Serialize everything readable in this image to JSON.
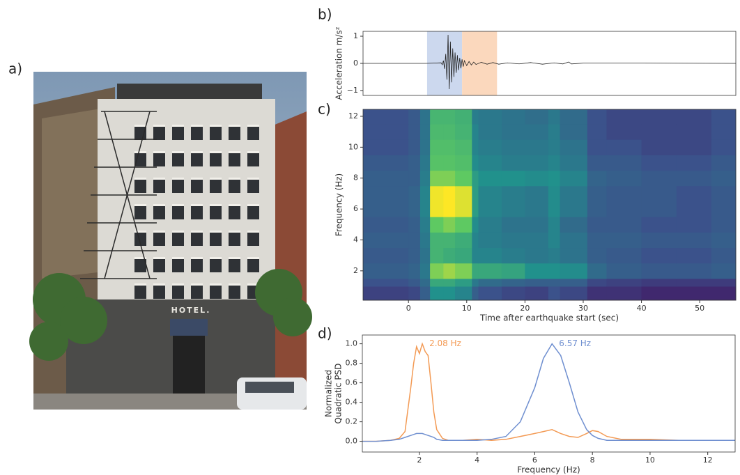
{
  "photo": {
    "label": "a)",
    "sign": "HOTEL."
  },
  "chart_data": [
    {
      "type": "line",
      "panel_label": "b)",
      "ylabel": [
        "Acceleration m/s²"
      ],
      "xlim": [
        -7.8,
        56.2
      ],
      "ylim": [
        -1.18,
        1.18
      ],
      "yticks": [
        {
          "value": -1,
          "label": "−1"
        },
        0,
        1
      ],
      "spans": [
        {
          "start": 3.2,
          "end": 9.2,
          "color": "#ccd8ee"
        },
        {
          "start": 9.2,
          "end": 15.2,
          "color": "#fbd8bd"
        }
      ],
      "x": [
        -7.8,
        3.0,
        5.6,
        5.8,
        6.0,
        6.2,
        6.4,
        6.6,
        6.8,
        7.0,
        7.2,
        7.4,
        7.6,
        7.8,
        8.0,
        8.2,
        8.4,
        8.6,
        8.8,
        9.0,
        9.2,
        9.4,
        9.6,
        10.0,
        10.4,
        10.8,
        11.2,
        11.6,
        12.5,
        13.5,
        14.5,
        15.5,
        17,
        19,
        21,
        23,
        25,
        26.5,
        27.5,
        28,
        30,
        40,
        56.2
      ],
      "series": [
        {
          "color": "#222222",
          "values": [
            0,
            0,
            0.02,
            -0.05,
            0.1,
            -0.2,
            0.35,
            -0.6,
            1.05,
            -0.95,
            0.8,
            -0.7,
            0.55,
            -0.5,
            0.4,
            -0.35,
            0.3,
            -0.25,
            0.2,
            -0.18,
            0.15,
            -0.12,
            0.1,
            -0.08,
            0.07,
            -0.06,
            0.05,
            -0.04,
            0.04,
            -0.03,
            0.03,
            -0.03,
            0.02,
            -0.02,
            0.03,
            -0.03,
            0.02,
            -0.02,
            0.05,
            -0.02,
            0.01,
            0.01,
            0
          ]
        }
      ]
    },
    {
      "type": "heatmap",
      "panel_label": "c)",
      "xlabel": "Time after earthquake start (sec)",
      "ylabel": [
        "Frequency (Hz)"
      ],
      "colormap": "viridis",
      "xlim": [
        -7.8,
        56.2
      ],
      "ylim": [
        0.1,
        12.45
      ],
      "xticks": [
        0,
        10,
        20,
        30,
        40,
        50
      ],
      "yticks": [
        2,
        4,
        6,
        8,
        10,
        12
      ],
      "x_edges": [
        -7.8,
        -4,
        0,
        2,
        3.7,
        6,
        8,
        10.9,
        12,
        16,
        20,
        24,
        26,
        30.7,
        34,
        40,
        46,
        52,
        56.2
      ],
      "y_edges": [
        0.1,
        1,
        1.5,
        2.5,
        3.5,
        4.5,
        5.5,
        7.5,
        8.5,
        9.5,
        10.5,
        11.5,
        12.45
      ],
      "values": [
        [
          0.2,
          0.2,
          0.22,
          0.3,
          0.5,
          0.5,
          0.45,
          0.3,
          0.25,
          0.22,
          0.2,
          0.25,
          0.22,
          0.15,
          0.15,
          0.12,
          0.12,
          0.12
        ],
        [
          0.25,
          0.25,
          0.28,
          0.35,
          0.6,
          0.6,
          0.55,
          0.4,
          0.35,
          0.32,
          0.3,
          0.3,
          0.3,
          0.22,
          0.2,
          0.18,
          0.18,
          0.18
        ],
        [
          0.3,
          0.3,
          0.32,
          0.4,
          0.8,
          0.85,
          0.8,
          0.6,
          0.6,
          0.58,
          0.5,
          0.5,
          0.48,
          0.35,
          0.3,
          0.28,
          0.28,
          0.3
        ],
        [
          0.28,
          0.28,
          0.3,
          0.38,
          0.65,
          0.62,
          0.6,
          0.45,
          0.45,
          0.42,
          0.4,
          0.42,
          0.38,
          0.3,
          0.28,
          0.25,
          0.25,
          0.28
        ],
        [
          0.3,
          0.3,
          0.3,
          0.4,
          0.65,
          0.65,
          0.62,
          0.45,
          0.42,
          0.4,
          0.4,
          0.45,
          0.38,
          0.3,
          0.3,
          0.28,
          0.28,
          0.3
        ],
        [
          0.28,
          0.28,
          0.3,
          0.42,
          0.75,
          0.8,
          0.75,
          0.48,
          0.42,
          0.38,
          0.38,
          0.45,
          0.35,
          0.28,
          0.28,
          0.25,
          0.25,
          0.28
        ],
        [
          0.3,
          0.3,
          0.32,
          0.45,
          0.98,
          1.0,
          0.95,
          0.55,
          0.45,
          0.42,
          0.4,
          0.48,
          0.4,
          0.3,
          0.28,
          0.28,
          0.25,
          0.28
        ],
        [
          0.3,
          0.3,
          0.3,
          0.42,
          0.8,
          0.8,
          0.75,
          0.55,
          0.5,
          0.5,
          0.48,
          0.5,
          0.45,
          0.32,
          0.3,
          0.28,
          0.28,
          0.3
        ],
        [
          0.28,
          0.28,
          0.3,
          0.4,
          0.72,
          0.72,
          0.7,
          0.48,
          0.45,
          0.42,
          0.42,
          0.45,
          0.4,
          0.28,
          0.28,
          0.25,
          0.25,
          0.28
        ],
        [
          0.25,
          0.25,
          0.28,
          0.38,
          0.7,
          0.7,
          0.68,
          0.45,
          0.42,
          0.4,
          0.4,
          0.42,
          0.38,
          0.25,
          0.25,
          0.22,
          0.22,
          0.25
        ],
        [
          0.25,
          0.25,
          0.28,
          0.38,
          0.68,
          0.68,
          0.65,
          0.45,
          0.4,
          0.38,
          0.38,
          0.42,
          0.35,
          0.25,
          0.22,
          0.22,
          0.22,
          0.25
        ],
        [
          0.25,
          0.25,
          0.28,
          0.38,
          0.66,
          0.66,
          0.64,
          0.42,
          0.4,
          0.38,
          0.36,
          0.4,
          0.35,
          0.25,
          0.22,
          0.22,
          0.22,
          0.25
        ]
      ]
    },
    {
      "type": "line",
      "panel_label": "d)",
      "xlabel": "Frequency (Hz)",
      "ylabel": [
        "Normalized",
        "Quadratic PSD"
      ],
      "xlim": [
        0.02,
        12.95
      ],
      "ylim": [
        -0.11,
        1.09
      ],
      "xticks": [
        2,
        4,
        6,
        8,
        10,
        12
      ],
      "yticks": [
        {
          "value": 0,
          "label": "0.0"
        },
        0.2,
        0.4,
        0.6,
        0.8,
        {
          "value": 1,
          "label": "1.0"
        }
      ],
      "x": [
        0.02,
        0.5,
        1.0,
        1.3,
        1.5,
        1.7,
        1.8,
        1.9,
        2.0,
        2.1,
        2.2,
        2.3,
        2.4,
        2.5,
        2.6,
        2.8,
        3.0,
        3.5,
        4,
        4.5,
        5,
        5.5,
        6,
        6.3,
        6.6,
        6.9,
        7.2,
        7.5,
        7.8,
        8.0,
        8.2,
        8.5,
        9,
        10,
        11,
        12,
        12.95
      ],
      "series": [
        {
          "color": "#f39a54",
          "peak_label": "2.08 Hz",
          "values": [
            0,
            0,
            0.01,
            0.03,
            0.1,
            0.55,
            0.8,
            0.97,
            0.9,
            1.0,
            0.92,
            0.88,
            0.6,
            0.3,
            0.12,
            0.03,
            0.01,
            0.01,
            0.02,
            0.01,
            0.02,
            0.05,
            0.08,
            0.1,
            0.12,
            0.08,
            0.05,
            0.04,
            0.08,
            0.11,
            0.1,
            0.05,
            0.02,
            0.02,
            0.01,
            0.01,
            0.01
          ]
        },
        {
          "color": "#6f8fd0",
          "peak_label": "6.57 Hz",
          "values": [
            0,
            0,
            0.01,
            0.02,
            0.04,
            0.06,
            0.07,
            0.08,
            0.08,
            0.08,
            0.07,
            0.06,
            0.05,
            0.04,
            0.02,
            0.01,
            0.01,
            0.01,
            0.01,
            0.02,
            0.05,
            0.2,
            0.55,
            0.85,
            1.0,
            0.88,
            0.6,
            0.3,
            0.12,
            0.06,
            0.03,
            0.01,
            0.01,
            0.01,
            0.01,
            0.01,
            0.01
          ]
        }
      ]
    }
  ]
}
